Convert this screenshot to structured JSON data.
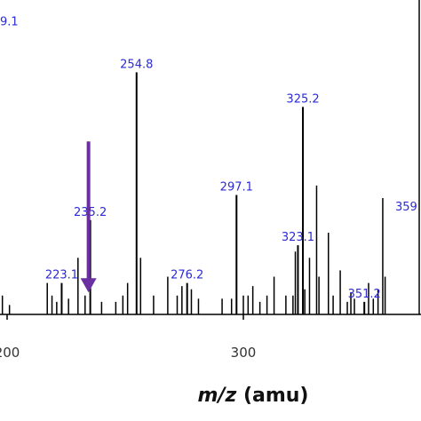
{
  "chart_data": {
    "type": "bar",
    "title": "",
    "xlabel_italic": "m/z",
    "xlabel_rest": " (amu)",
    "ylabel": "",
    "xlim": [
      195,
      350
    ],
    "x_ticks": [
      {
        "value": 200,
        "label": "200"
      },
      {
        "value": 300,
        "label": "300"
      }
    ],
    "ylim": [
      0,
      100
    ],
    "partial_labels": [
      {
        "text": "9.1",
        "side": "left",
        "x": 195,
        "y": 92
      },
      {
        "text": "359",
        "side": "right",
        "x": 345,
        "y": 33
      }
    ],
    "peaks": [
      {
        "mz": 196.5,
        "intensity": 32
      },
      {
        "mz": 198.0,
        "intensity": 6
      },
      {
        "mz": 201.0,
        "intensity": 3
      },
      {
        "mz": 217.0,
        "intensity": 10
      },
      {
        "mz": 219.0,
        "intensity": 6
      },
      {
        "mz": 221.0,
        "intensity": 4
      },
      {
        "mz": 223.1,
        "intensity": 10,
        "label": "223.1"
      },
      {
        "mz": 226.0,
        "intensity": 5
      },
      {
        "mz": 230.0,
        "intensity": 18
      },
      {
        "mz": 233.0,
        "intensity": 6
      },
      {
        "mz": 235.2,
        "intensity": 30,
        "label": "235.2"
      },
      {
        "mz": 240.0,
        "intensity": 4
      },
      {
        "mz": 246.0,
        "intensity": 4
      },
      {
        "mz": 249.0,
        "intensity": 6
      },
      {
        "mz": 251.0,
        "intensity": 10
      },
      {
        "mz": 254.8,
        "intensity": 77,
        "label": "254.8"
      },
      {
        "mz": 256.5,
        "intensity": 18
      },
      {
        "mz": 262.0,
        "intensity": 6
      },
      {
        "mz": 268.0,
        "intensity": 12
      },
      {
        "mz": 272.0,
        "intensity": 6
      },
      {
        "mz": 274.0,
        "intensity": 9
      },
      {
        "mz": 276.2,
        "intensity": 10,
        "label": "276.2"
      },
      {
        "mz": 278.0,
        "intensity": 8
      },
      {
        "mz": 281.0,
        "intensity": 5
      },
      {
        "mz": 291.0,
        "intensity": 5
      },
      {
        "mz": 295.0,
        "intensity": 5
      },
      {
        "mz": 297.1,
        "intensity": 38,
        "label": "297.1"
      },
      {
        "mz": 300.0,
        "intensity": 6
      },
      {
        "mz": 302.0,
        "intensity": 6
      },
      {
        "mz": 304.0,
        "intensity": 9
      },
      {
        "mz": 307.0,
        "intensity": 4
      },
      {
        "mz": 310.0,
        "intensity": 6
      },
      {
        "mz": 313.0,
        "intensity": 12
      },
      {
        "mz": 318.0,
        "intensity": 6
      },
      {
        "mz": 321.0,
        "intensity": 6
      },
      {
        "mz": 322.0,
        "intensity": 20
      },
      {
        "mz": 323.1,
        "intensity": 22,
        "label": "323.1"
      },
      {
        "mz": 325.2,
        "intensity": 66,
        "label": "325.2"
      },
      {
        "mz": 326.0,
        "intensity": 8
      },
      {
        "mz": 328.0,
        "intensity": 18
      },
      {
        "mz": 331.0,
        "intensity": 41
      },
      {
        "mz": 332.0,
        "intensity": 12
      },
      {
        "mz": 336.0,
        "intensity": 26
      },
      {
        "mz": 338.0,
        "intensity": 6
      },
      {
        "mz": 341.0,
        "intensity": 14
      },
      {
        "mz": 344.0,
        "intensity": 4
      },
      {
        "mz": 345.5,
        "intensity": 7
      },
      {
        "mz": 347.0,
        "intensity": 5
      },
      {
        "mz": 351.2,
        "intensity": 4,
        "label": "351.2"
      },
      {
        "mz": 353.0,
        "intensity": 10
      },
      {
        "mz": 355.0,
        "intensity": 5
      },
      {
        "mz": 357.0,
        "intensity": 8
      },
      {
        "mz": 359.0,
        "intensity": 37
      },
      {
        "mz": 360.0,
        "intensity": 12
      }
    ],
    "arrow": {
      "x": 235.2,
      "from_y": 55,
      "to_y": 7,
      "color": "#6a2fa0"
    }
  }
}
